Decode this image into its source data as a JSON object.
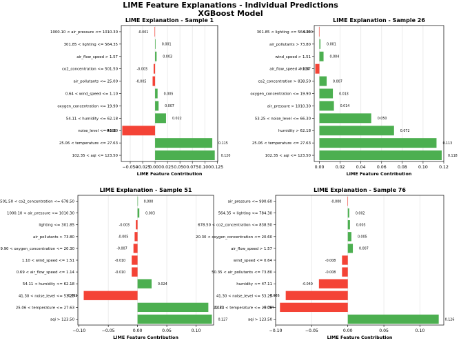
{
  "figure": {
    "title_line1": "LIME Feature Explanations - Individual Predictions",
    "title_line2": "XGBoost Model"
  },
  "colors": {
    "positive": "#4caf50",
    "negative": "#f44336",
    "grid": "#e6e6e6"
  },
  "chart_data": [
    {
      "type": "bar",
      "orientation": "horizontal",
      "title": "LIME Explanation - Sample 1",
      "xlabel": "LIME Feature Contribution",
      "xlim": [
        -0.068,
        0.126
      ],
      "xticks": [
        -0.05,
        -0.025,
        0.0,
        0.025,
        0.05,
        0.075,
        0.1,
        0.125
      ],
      "xtick_labels": [
        "−0.050",
        "−0.025",
        "0.000",
        "0.025",
        "0.050",
        "0.075",
        "0.100",
        "0.125"
      ],
      "grid": "x",
      "categories": [
        "1000.10 < air_pressure <= 1010.30",
        "301.85 < lighting <= 564.35",
        "air_flow_speed > 1.57",
        "co2_concentration <= 501.50",
        "air_pollutants <= 25.00",
        "0.64 < wind_speed <= 1.10",
        "oxygen_concentration <= 19.90",
        "54.11 < humidity <= 62.18",
        "noise_level <= 41.30",
        "25.06 < temperature <= 27.63",
        "102.35 < aqi <= 123.50"
      ],
      "values": [
        -0.001,
        0.001,
        0.003,
        -0.003,
        -0.005,
        0.005,
        0.007,
        0.022,
        -0.066,
        0.115,
        0.12
      ],
      "value_labels": [
        "-0.001",
        "0.001",
        "0.003",
        "-0.003",
        "-0.005",
        "0.005",
        "0.007",
        "0.022",
        "-0.066",
        "0.115",
        "0.120"
      ]
    },
    {
      "type": "bar",
      "orientation": "horizontal",
      "title": "LIME Explanation - Sample 26",
      "xlabel": "LIME Feature Contribution",
      "xlim": [
        -0.005,
        0.12
      ],
      "xticks": [
        0.0,
        0.02,
        0.04,
        0.06,
        0.08,
        0.1,
        0.12
      ],
      "xtick_labels": [
        "0.00",
        "0.02",
        "0.04",
        "0.06",
        "0.08",
        "0.10",
        "0.12"
      ],
      "grid": "x",
      "categories": [
        "301.85 < lighting <= 564.35",
        "air_pollutants > 73.80",
        "wind_speed > 1.51",
        "air_flow_speed > 1.57",
        "co2_concentration > 838.50",
        "oxygen_concentration <= 19.90",
        "air_pressure > 1010.30",
        "53.25 < noise_level <= 66.30",
        "humidity > 62.18",
        "25.06 < temperature <= 27.63",
        "102.35 < aqi <= 123.50"
      ],
      "values": [
        -0.0004,
        0.001,
        0.004,
        -0.004,
        0.007,
        0.013,
        0.014,
        0.05,
        0.072,
        0.113,
        0.118
      ],
      "value_labels": [
        "-0.000",
        "0.001",
        "0.004",
        "-0.004",
        "0.007",
        "0.013",
        "0.014",
        "0.050",
        "0.072",
        "0.113",
        "0.118"
      ]
    },
    {
      "type": "bar",
      "orientation": "horizontal",
      "title": "LIME Explanation - Sample 51",
      "xlabel": "LIME Feature Contribution",
      "xlim": [
        -0.102,
        0.13
      ],
      "xticks": [
        -0.1,
        -0.05,
        0.0,
        0.05,
        0.1
      ],
      "xtick_labels": [
        "−0.10",
        "−0.05",
        "0.00",
        "0.05",
        "0.10"
      ],
      "grid": "x",
      "categories": [
        "501.50 < co2_concentration <= 678.50",
        "1000.10 < air_pressure <= 1010.30",
        "lighting <= 301.85",
        "air_pollutants > 73.80",
        "19.90 < oxygen_concentration <= 20.30",
        "1.10 < wind_speed <= 1.51",
        "0.69 < air_flow_speed <= 1.14",
        "54.11 < humidity <= 62.18",
        "41.30 < noise_level <= 53.25",
        "25.06 < temperature <= 27.63",
        "aqi > 123.50"
      ],
      "values": [
        0.0,
        0.003,
        -0.003,
        -0.005,
        -0.007,
        -0.01,
        -0.01,
        0.024,
        -0.092,
        0.121,
        0.127
      ],
      "value_labels": [
        "0.000",
        "0.003",
        "-0.003",
        "-0.005",
        "-0.007",
        "-0.010",
        "-0.010",
        "0.024",
        "-0.092",
        "0.121",
        "0.127"
      ]
    },
    {
      "type": "bar",
      "orientation": "horizontal",
      "title": "LIME Explanation - Sample 76",
      "xlabel": "LIME Feature Contribution",
      "xlim": [
        -0.1,
        0.133
      ],
      "xticks": [
        -0.1,
        -0.05,
        0.0,
        0.05,
        0.1
      ],
      "xtick_labels": [
        "−0.10",
        "−0.05",
        "0.00",
        "0.05",
        "0.10"
      ],
      "grid": "x",
      "categories": [
        "air_pressure <= 990.60",
        "564.35 < lighting <= 784.30",
        "678.50 < co2_concentration <= 838.50",
        "20.30 < oxygen_concentration <= 20.60",
        "air_flow_speed > 1.57",
        "wind_speed <= 0.64",
        "50.35 < air_pollutants <= 73.80",
        "humidity <= 47.11",
        "41.30 < noise_level <= 53.25",
        "22.53 < temperature <= 25.06",
        "aqi > 123.50"
      ],
      "values": [
        -0.0004,
        0.002,
        0.003,
        0.005,
        0.007,
        -0.008,
        -0.008,
        -0.04,
        -0.086,
        -0.094,
        0.126
      ],
      "value_labels": [
        "-0.000",
        "0.002",
        "0.003",
        "0.005",
        "0.007",
        "-0.008",
        "-0.008",
        "-0.040",
        "-0.086",
        "-0.094",
        "0.126"
      ]
    }
  ]
}
